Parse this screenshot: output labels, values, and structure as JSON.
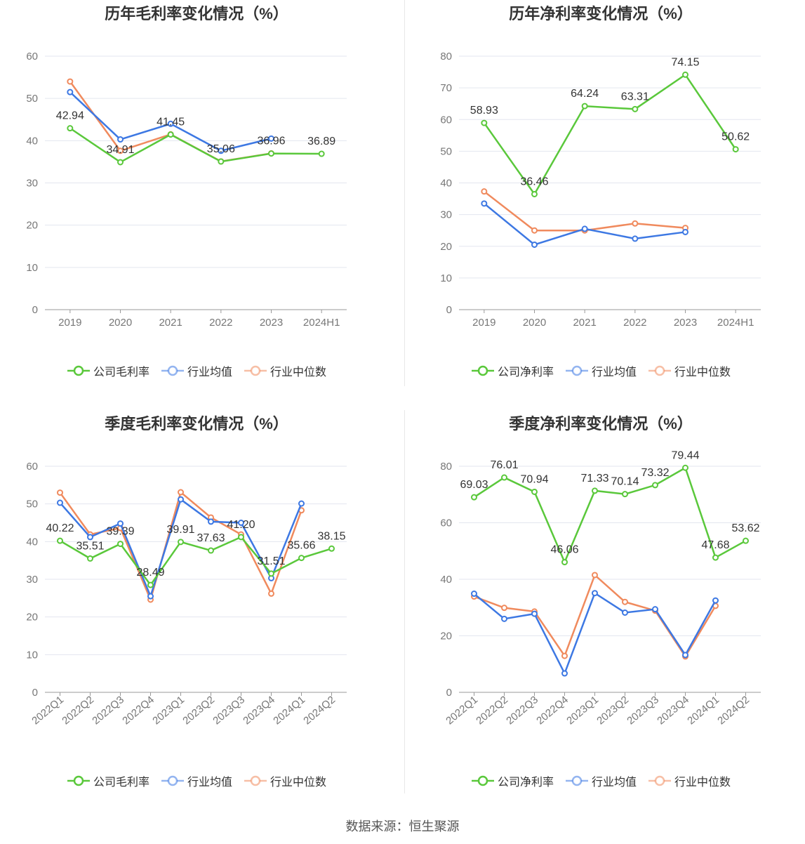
{
  "colors": {
    "company": "#5ac83b",
    "avg": "#3d78e3",
    "median": "#f08a5d",
    "grid": "#e3e6ef",
    "axis": "#999999",
    "tick": "#777777"
  },
  "source": "数据来源：恒生聚源",
  "chart_data": [
    {
      "type": "line",
      "title": "历年毛利率变化情况（%）",
      "categories": [
        "2019",
        "2020",
        "2021",
        "2022",
        "2023",
        "2024H1"
      ],
      "ylim": [
        0,
        60
      ],
      "yticks": [
        "0",
        "10",
        "20",
        "30",
        "40",
        "50",
        "60"
      ],
      "series": [
        {
          "name": "公司毛利率",
          "role": "company",
          "values": [
            42.94,
            34.91,
            41.45,
            35.06,
            36.96,
            36.89
          ],
          "labels": [
            "42.94",
            "34.91",
            "41.45",
            "35.06",
            "36.96",
            "36.89"
          ]
        },
        {
          "name": "行业均值",
          "role": "avg",
          "values": [
            51.5,
            40.3,
            44.0,
            37.6,
            40.5,
            null
          ]
        },
        {
          "name": "行业中位数",
          "role": "median",
          "values": [
            54.0,
            37.6,
            41.5,
            35.1,
            37.0,
            null
          ]
        }
      ]
    },
    {
      "type": "line",
      "title": "历年净利率变化情况（%）",
      "categories": [
        "2019",
        "2020",
        "2021",
        "2022",
        "2023",
        "2024H1"
      ],
      "ylim": [
        0,
        80
      ],
      "yticks": [
        "0",
        "10",
        "20",
        "30",
        "40",
        "50",
        "60",
        "70",
        "80"
      ],
      "series": [
        {
          "name": "公司净利率",
          "role": "company",
          "values": [
            58.93,
            36.46,
            64.24,
            63.31,
            74.15,
            50.62
          ],
          "labels": [
            "58.93",
            "36.46",
            "64.24",
            "63.31",
            "74.15",
            "50.62"
          ]
        },
        {
          "name": "行业均值",
          "role": "avg",
          "values": [
            33.5,
            20.5,
            25.5,
            22.4,
            24.5,
            null
          ]
        },
        {
          "name": "行业中位数",
          "role": "median",
          "values": [
            37.3,
            25.0,
            25.0,
            27.2,
            25.8,
            null
          ]
        }
      ]
    },
    {
      "type": "line",
      "title": "季度毛利率变化情况（%）",
      "categories": [
        "2022Q1",
        "2022Q2",
        "2022Q3",
        "2022Q4",
        "2023Q1",
        "2023Q2",
        "2023Q3",
        "2023Q4",
        "2024Q1",
        "2024Q2"
      ],
      "ylim": [
        0,
        60
      ],
      "yticks": [
        "0",
        "10",
        "20",
        "30",
        "40",
        "50",
        "60"
      ],
      "series": [
        {
          "name": "公司毛利率",
          "role": "company",
          "values": [
            40.22,
            35.51,
            39.39,
            28.49,
            39.91,
            37.63,
            41.2,
            31.51,
            35.66,
            38.15
          ],
          "labels": [
            "40.22",
            "35.51",
            "39.39",
            "28.49",
            "39.91",
            "37.63",
            "41.20",
            "31.51",
            "35.66",
            "38.15"
          ]
        },
        {
          "name": "行业均值",
          "role": "avg",
          "values": [
            50.3,
            41.2,
            44.8,
            25.5,
            51.2,
            45.3,
            45.0,
            30.3,
            50.1,
            null
          ]
        },
        {
          "name": "行业中位数",
          "role": "median",
          "values": [
            53.0,
            41.9,
            43.6,
            24.6,
            53.1,
            46.4,
            41.9,
            26.2,
            48.3,
            null
          ]
        }
      ]
    },
    {
      "type": "line",
      "title": "季度净利率变化情况（%）",
      "categories": [
        "2022Q1",
        "2022Q2",
        "2022Q3",
        "2022Q4",
        "2023Q1",
        "2023Q2",
        "2023Q3",
        "2023Q4",
        "2024Q1",
        "2024Q2"
      ],
      "ylim": [
        0,
        80
      ],
      "yticks": [
        "0",
        "20",
        "40",
        "60",
        "80"
      ],
      "series": [
        {
          "name": "公司净利率",
          "role": "company",
          "values": [
            69.03,
            76.01,
            70.94,
            46.06,
            71.33,
            70.14,
            73.32,
            79.44,
            47.68,
            53.62
          ],
          "labels": [
            "69.03",
            "76.01",
            "70.94",
            "46.06",
            "71.33",
            "70.14",
            "73.32",
            "79.44",
            "47.68",
            "53.62"
          ]
        },
        {
          "name": "行业均值",
          "role": "avg",
          "values": [
            34.9,
            26.0,
            27.8,
            6.7,
            35.1,
            28.2,
            29.4,
            13.2,
            32.5,
            null
          ]
        },
        {
          "name": "行业中位数",
          "role": "median",
          "values": [
            33.9,
            29.9,
            28.6,
            12.9,
            41.5,
            32.0,
            28.9,
            12.7,
            30.6,
            null
          ]
        }
      ]
    }
  ]
}
